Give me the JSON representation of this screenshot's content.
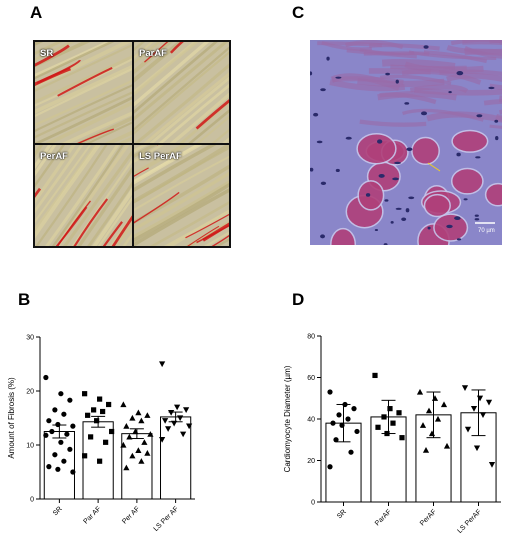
{
  "panels": {
    "A": {
      "letter": "A",
      "tiles": [
        "SR",
        "ParAF",
        "PerAF",
        "LS PerAF"
      ]
    },
    "B": {
      "letter": "B"
    },
    "C": {
      "letter": "C",
      "scale_bar": "70 µm"
    },
    "D": {
      "letter": "D"
    }
  },
  "chart_data": [
    {
      "type": "bar",
      "panel": "B",
      "ylabel": "Amount of Fibrosis (%)",
      "xlabel": "",
      "ylim": [
        0,
        30
      ],
      "yticks": [
        0,
        10,
        20,
        30
      ],
      "categories": [
        "SR",
        "Par AF",
        "Per AF",
        "LS Per AF"
      ],
      "markers": [
        "circle",
        "square",
        "triangle",
        "triangle-down"
      ],
      "values": [
        12.5,
        14.3,
        12.1,
        15.2
      ],
      "errors": [
        1.2,
        1.0,
        0.9,
        0.9
      ],
      "points": [
        [
          22.5,
          19.5,
          18.3,
          16.5,
          15.7,
          14.5,
          13.8,
          13.5,
          12.5,
          12.0,
          11.8,
          10.5,
          9.2,
          8.2,
          7.0,
          6.0,
          5.5,
          5.0
        ],
        [
          19.5,
          18.5,
          17.5,
          16.5,
          16.2,
          15.5,
          14.5,
          12.5,
          11.5,
          10.5,
          8.0,
          7.0
        ],
        [
          17.5,
          16.0,
          15.5,
          15.0,
          14.5,
          13.5,
          12.5,
          12.0,
          11.5,
          10.5,
          10.0,
          9.0,
          8.5,
          8.0,
          7.0,
          5.8
        ],
        [
          25.0,
          17.0,
          16.5,
          16.0,
          15.0,
          14.5,
          14.0,
          13.5,
          13.0,
          12.0,
          11.0
        ]
      ]
    },
    {
      "type": "bar",
      "panel": "D",
      "ylabel": "Cardiomyocyte Diameter (µm)",
      "xlabel": "",
      "ylim": [
        0,
        80
      ],
      "yticks": [
        0,
        20,
        40,
        60,
        80
      ],
      "categories": [
        "SR",
        "ParAF",
        "PerAF",
        "LS PerAF"
      ],
      "markers": [
        "circle",
        "square",
        "triangle",
        "triangle-down"
      ],
      "values": [
        38,
        41,
        42,
        43
      ],
      "errors": [
        9,
        8,
        11,
        11
      ],
      "points": [
        [
          53,
          47,
          45,
          42,
          40,
          38,
          37,
          34,
          30,
          24,
          17
        ],
        [
          61,
          45,
          43,
          41,
          38,
          36,
          33,
          31
        ],
        [
          53,
          50,
          47,
          44,
          40,
          37,
          33,
          27,
          25
        ],
        [
          55,
          50,
          48,
          45,
          42,
          35,
          26,
          18
        ]
      ]
    }
  ],
  "colors": {
    "tissue_stain": "#c9c0a0",
    "collagen": "#d01818",
    "he_stroma": "#8a86c9",
    "he_fiber": "#b0407a",
    "nucleus": "#2a2a6a",
    "bars": "#ffffff",
    "markers": "#000000"
  }
}
